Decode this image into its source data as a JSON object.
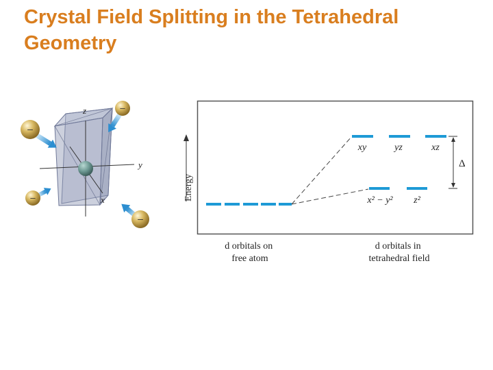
{
  "title": {
    "line1": "Crystal Field Splitting in the Tetrahedral",
    "line2": "Geometry"
  },
  "colors": {
    "title": "#D97E1F",
    "orbital_level": "#1E9AD6",
    "ligand_arrow": "#3E9BD6",
    "ligand_sphere": "#C9A64E",
    "cube": "#8E96B4",
    "central_atom": "#5E8C86"
  },
  "geometry_figure": {
    "axis_labels": {
      "z": "z",
      "y": "y",
      "x": "x"
    },
    "ligand_sign": "–"
  },
  "energy_diagram": {
    "y_axis_label": "Energy",
    "upper_orbitals": [
      "xy",
      "yz",
      "xz"
    ],
    "lower_orbitals": [
      "x² − y²",
      "z²"
    ],
    "splitting_label": "Δ",
    "caption_free": [
      "d orbitals on",
      "free atom"
    ],
    "caption_field": [
      "d orbitals in",
      "tetrahedral field"
    ]
  }
}
